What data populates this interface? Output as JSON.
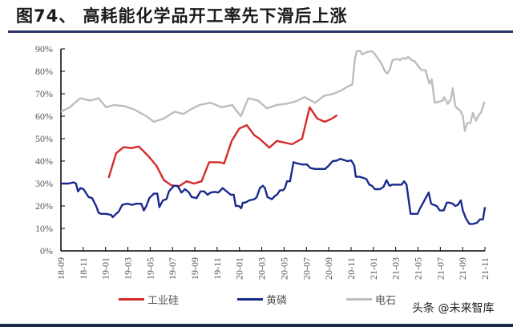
{
  "header": {
    "title": "图74、 高耗能化学品开工率先下滑后上涨"
  },
  "watermark": "头条 @未来智库",
  "colors": {
    "industrial_silicon": "#d42a2a",
    "yellow_phosphorus": "#1a2a8c",
    "calcium_carbide": "#bdbdbd",
    "axis": "#000000",
    "title_rule": "#2b3466"
  },
  "chart_data": {
    "type": "line",
    "title": "高耗能化学品开工率先下滑后上涨",
    "xlabel": "",
    "ylabel": "",
    "ylim": [
      0,
      90
    ],
    "yticks": [
      "0%",
      "10%",
      "20%",
      "30%",
      "40%",
      "50%",
      "60%",
      "70%",
      "80%",
      "90%"
    ],
    "xticks": [
      "18-09",
      "18-11",
      "19-01",
      "19-03",
      "19-05",
      "19-07",
      "19-09",
      "19-11",
      "20-01",
      "20-03",
      "20-05",
      "20-07",
      "20-09",
      "20-11",
      "21-01",
      "21-03",
      "21-05",
      "21-07",
      "21-09",
      "21-11"
    ],
    "grid": false,
    "legend_position": "bottom",
    "series": [
      {
        "name": "工业硅",
        "color": "#d42a2a",
        "points": [
          [
            9.5,
            32.5
          ],
          [
            11,
            43.5
          ],
          [
            12.5,
            46.2
          ],
          [
            14,
            45.8
          ],
          [
            15.5,
            46.5
          ],
          [
            17.5,
            42
          ],
          [
            19,
            38
          ],
          [
            20.5,
            31.5
          ],
          [
            22,
            29.2
          ],
          [
            23.5,
            28.8
          ],
          [
            25,
            31
          ],
          [
            26.5,
            30
          ],
          [
            28,
            31
          ],
          [
            29.5,
            39.5
          ],
          [
            31.5,
            39.5
          ],
          [
            32.5,
            39
          ],
          [
            34,
            49
          ],
          [
            35.5,
            54.5
          ],
          [
            37,
            56
          ],
          [
            38.5,
            51.5
          ],
          [
            39.5,
            50
          ],
          [
            41.5,
            46
          ],
          [
            43,
            49
          ],
          [
            46,
            47.5
          ],
          [
            48,
            50
          ],
          [
            49.5,
            64
          ],
          [
            51,
            59
          ],
          [
            52.5,
            57.5
          ],
          [
            54,
            59
          ],
          [
            55,
            60.5
          ]
        ]
      },
      {
        "name": "黄磷",
        "color": "#1a2a8c",
        "points": [
          [
            0,
            30
          ],
          [
            1.5,
            30
          ],
          [
            2.5,
            30.5
          ],
          [
            3,
            30
          ],
          [
            3.4,
            26.5
          ],
          [
            3.9,
            28
          ],
          [
            4.5,
            27.5
          ],
          [
            5.5,
            24
          ],
          [
            6.2,
            23.5
          ],
          [
            7,
            20
          ],
          [
            7.5,
            17
          ],
          [
            8,
            16.5
          ],
          [
            9,
            16.5
          ],
          [
            10,
            16
          ],
          [
            10.3,
            15
          ],
          [
            11,
            16.5
          ],
          [
            11.5,
            17.5
          ],
          [
            12.2,
            20.5
          ],
          [
            13.2,
            21
          ],
          [
            14.2,
            20.5
          ],
          [
            15,
            21
          ],
          [
            16,
            21
          ],
          [
            16.5,
            18
          ],
          [
            17,
            20
          ],
          [
            17.6,
            23.5
          ],
          [
            18.5,
            25.5
          ],
          [
            19.2,
            25.5
          ],
          [
            19.6,
            19.5
          ],
          [
            20.3,
            22.5
          ],
          [
            21,
            23
          ],
          [
            21.5,
            26.5
          ],
          [
            22.5,
            29
          ],
          [
            23.2,
            29
          ],
          [
            24,
            26
          ],
          [
            24.7,
            27.5
          ],
          [
            25.5,
            26
          ],
          [
            26,
            24
          ],
          [
            27,
            23.5
          ],
          [
            27.8,
            26.5
          ],
          [
            28.5,
            26.5
          ],
          [
            29.2,
            25
          ],
          [
            29.8,
            26
          ],
          [
            30.6,
            26.3
          ],
          [
            31.3,
            26
          ],
          [
            31.8,
            27
          ],
          [
            32.2,
            28
          ],
          [
            32.7,
            27
          ],
          [
            33.8,
            25
          ],
          [
            34.4,
            25
          ],
          [
            34.8,
            20
          ],
          [
            35.4,
            20
          ],
          [
            35.9,
            19
          ],
          [
            36.2,
            21.5
          ],
          [
            36.7,
            21.5
          ],
          [
            37.5,
            22.5
          ],
          [
            38.5,
            23
          ],
          [
            39,
            24
          ],
          [
            39.6,
            28
          ],
          [
            40.2,
            29
          ],
          [
            40.6,
            28
          ],
          [
            41.1,
            24
          ],
          [
            42,
            23
          ],
          [
            42.6,
            24.5
          ],
          [
            43,
            25
          ],
          [
            43.6,
            27
          ],
          [
            44.2,
            27
          ],
          [
            44.6,
            28
          ],
          [
            45,
            31
          ],
          [
            45.6,
            31
          ],
          [
            46.3,
            39.5
          ],
          [
            47,
            39
          ],
          [
            48,
            38.5
          ],
          [
            49,
            38.5
          ],
          [
            49.6,
            37
          ],
          [
            50.5,
            36.5
          ],
          [
            51.8,
            36.5
          ],
          [
            52.6,
            36.5
          ],
          [
            53.3,
            38
          ],
          [
            54.1,
            40
          ],
          [
            54.9,
            40.2
          ],
          [
            55.6,
            41
          ],
          [
            56.3,
            40.5
          ],
          [
            57,
            40
          ],
          [
            57.8,
            40.3
          ],
          [
            58.4,
            38
          ],
          [
            58.7,
            33
          ],
          [
            59.5,
            33
          ],
          [
            60.2,
            32.5
          ],
          [
            60.8,
            32
          ],
          [
            61.4,
            29.5
          ],
          [
            61.9,
            29
          ],
          [
            62.5,
            27.5
          ],
          [
            63.5,
            27.5
          ],
          [
            64.2,
            28.5
          ],
          [
            64.8,
            31.5
          ],
          [
            65.4,
            29
          ],
          [
            66,
            29.5
          ],
          [
            67,
            29.5
          ],
          [
            67.8,
            29.5
          ],
          [
            68.3,
            31
          ],
          [
            68.8,
            29.5
          ],
          [
            69.6,
            16.5
          ],
          [
            70.4,
            16.5
          ],
          [
            71,
            16.5
          ],
          [
            71.5,
            19
          ],
          [
            72,
            21
          ],
          [
            72.6,
            23.5
          ],
          [
            73.2,
            26
          ],
          [
            73.7,
            21
          ],
          [
            74.2,
            20.5
          ],
          [
            74.8,
            20
          ],
          [
            75.4,
            18
          ],
          [
            76.2,
            18
          ],
          [
            76.8,
            21.5
          ],
          [
            77.3,
            21.5
          ],
          [
            78,
            21
          ],
          [
            78.5,
            20
          ],
          [
            79,
            20.5
          ],
          [
            79.6,
            22.5
          ],
          [
            80,
            18
          ],
          [
            80.6,
            14.5
          ],
          [
            81.3,
            12
          ],
          [
            82,
            12
          ],
          [
            82.8,
            12.5
          ],
          [
            83.4,
            14
          ],
          [
            84,
            14
          ],
          [
            84.4,
            19.5
          ]
        ]
      },
      {
        "name": "电石",
        "color": "#bdbdbd",
        "points": [
          [
            0,
            62
          ],
          [
            1.8,
            64
          ],
          [
            3.8,
            68
          ],
          [
            5.8,
            67
          ],
          [
            7.5,
            68
          ],
          [
            9,
            64
          ],
          [
            10.6,
            65
          ],
          [
            12.6,
            64.5
          ],
          [
            14.6,
            63
          ],
          [
            17,
            60
          ],
          [
            18.5,
            57.5
          ],
          [
            20.5,
            59
          ],
          [
            22.6,
            62
          ],
          [
            24.4,
            61
          ],
          [
            25.8,
            63
          ],
          [
            27.6,
            65
          ],
          [
            29.8,
            66
          ],
          [
            32,
            64
          ],
          [
            34.1,
            65
          ],
          [
            35.8,
            60
          ],
          [
            37.3,
            68
          ],
          [
            39.2,
            67
          ],
          [
            41,
            63.5
          ],
          [
            43,
            65
          ],
          [
            44.8,
            65.5
          ],
          [
            46.6,
            66.5
          ],
          [
            48.5,
            68.5
          ],
          [
            50.6,
            66
          ],
          [
            52.3,
            69
          ],
          [
            54.2,
            70
          ],
          [
            55.8,
            71.5
          ],
          [
            57.3,
            73.5
          ],
          [
            58,
            74
          ],
          [
            58.5,
            85.5
          ],
          [
            58.9,
            89
          ],
          [
            59.6,
            89
          ],
          [
            60,
            87.5
          ],
          [
            60.8,
            88.5
          ],
          [
            61.8,
            89
          ],
          [
            62.4,
            88
          ],
          [
            63,
            86
          ],
          [
            63.5,
            84.5
          ],
          [
            63.9,
            83
          ],
          [
            64.5,
            80
          ],
          [
            65,
            79
          ],
          [
            65.5,
            81
          ],
          [
            66,
            85
          ],
          [
            66.9,
            85.5
          ],
          [
            67.5,
            85
          ],
          [
            68.1,
            86
          ],
          [
            68.6,
            85.5
          ],
          [
            69.1,
            86.5
          ],
          [
            69.8,
            85
          ],
          [
            70.4,
            84.5
          ],
          [
            70.9,
            83
          ],
          [
            71.4,
            81.5
          ],
          [
            71.9,
            80.5
          ],
          [
            72.6,
            80.5
          ],
          [
            73,
            77
          ],
          [
            73.4,
            74.5
          ],
          [
            73.8,
            76.5
          ],
          [
            74.4,
            66
          ],
          [
            75.3,
            66.5
          ],
          [
            76,
            67
          ],
          [
            76.3,
            68.5
          ],
          [
            77,
            65.5
          ],
          [
            77.6,
            67.5
          ],
          [
            78,
            72.5
          ],
          [
            78.5,
            64.5
          ],
          [
            79.1,
            63
          ],
          [
            79.5,
            62.5
          ],
          [
            80,
            60
          ],
          [
            80.4,
            53.5
          ],
          [
            80.9,
            57
          ],
          [
            81.5,
            57
          ],
          [
            82,
            61.5
          ],
          [
            82.6,
            58
          ],
          [
            83.2,
            60.5
          ],
          [
            83.7,
            62
          ],
          [
            84.3,
            66.5
          ]
        ]
      }
    ]
  },
  "legend": {
    "items": [
      {
        "label": "工业硅"
      },
      {
        "label": "黄磷"
      },
      {
        "label": "电石"
      }
    ]
  }
}
